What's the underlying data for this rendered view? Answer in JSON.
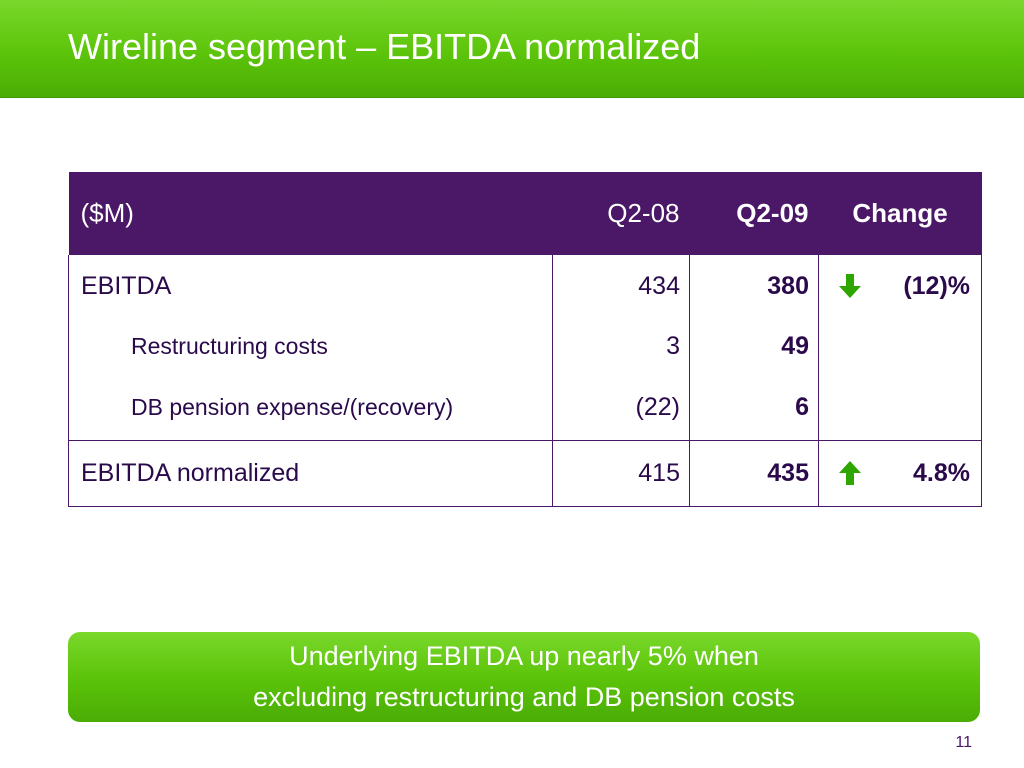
{
  "slide": {
    "title": "Wireline segment – EBITDA normalized",
    "page_number": "11"
  },
  "table": {
    "headers": [
      "($M)",
      "Q2-08",
      "Q2-09",
      "Change"
    ],
    "rows": [
      {
        "label": "EBITDA",
        "q2_08": "434",
        "q2_09": "380",
        "change": "(12)%",
        "trend": "down-arrow-icon"
      },
      {
        "label": "Restructuring costs",
        "q2_08": "3",
        "q2_09": "49",
        "change": ""
      },
      {
        "label": "DB pension expense/(recovery)",
        "q2_08": "(22)",
        "q2_09": "6",
        "change": ""
      },
      {
        "label": "EBITDA normalized",
        "q2_08": "415",
        "q2_09": "435",
        "change": "4.8%",
        "trend": "up-arrow-icon"
      }
    ]
  },
  "callout": {
    "line1": "Underlying EBITDA up nearly 5% when",
    "line2": "excluding restructuring and DB pension costs"
  },
  "colors": {
    "green": "#5cc40a",
    "purple": "#4b1767"
  }
}
